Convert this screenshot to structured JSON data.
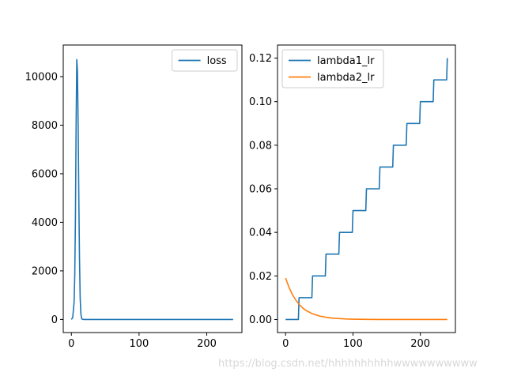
{
  "chart_data": [
    {
      "type": "line",
      "title": "",
      "xlabel": "",
      "ylabel": "",
      "xlim": [
        -12,
        252
      ],
      "ylim": [
        -540,
        11300
      ],
      "xticks": [
        0,
        100,
        200
      ],
      "xtick_labels": [
        "0",
        "100",
        "200"
      ],
      "yticks": [
        0,
        2000,
        4000,
        6000,
        8000,
        10000
      ],
      "ytick_labels": [
        "0",
        "2000",
        "4000",
        "6000",
        "8000",
        "10000"
      ],
      "legend_position": "top-right",
      "series": [
        {
          "name": "loss",
          "color": "#1f77b4",
          "x": [
            0,
            2,
            4,
            5,
            6,
            7,
            8,
            9,
            10,
            11,
            12,
            13,
            14,
            15,
            16,
            18,
            20,
            30,
            50,
            100,
            150,
            200,
            239
          ],
          "y": [
            0,
            80,
            700,
            1800,
            4200,
            8000,
            10700,
            10200,
            8000,
            5000,
            2500,
            900,
            250,
            60,
            10,
            0,
            0,
            0,
            0,
            0,
            0,
            0,
            0
          ]
        }
      ]
    },
    {
      "type": "line",
      "title": "",
      "xlabel": "",
      "ylabel": "",
      "xlim": [
        -12,
        252
      ],
      "ylim": [
        -0.006,
        0.126
      ],
      "xticks": [
        0,
        100,
        200
      ],
      "xtick_labels": [
        "0",
        "100",
        "200"
      ],
      "yticks": [
        0.0,
        0.02,
        0.04,
        0.06,
        0.08,
        0.1,
        0.12
      ],
      "ytick_labels": [
        "0.00",
        "0.02",
        "0.04",
        "0.06",
        "0.08",
        "0.10",
        "0.12"
      ],
      "legend_position": "top-left",
      "series": [
        {
          "name": "lambda1_lr",
          "color": "#1f77b4",
          "x": [
            0,
            19,
            20,
            39,
            40,
            59,
            60,
            79,
            80,
            99,
            100,
            119,
            120,
            139,
            140,
            159,
            160,
            179,
            180,
            199,
            200,
            219,
            220,
            239,
            240
          ],
          "y": [
            0.0,
            0.0,
            0.01,
            0.01,
            0.02,
            0.02,
            0.03,
            0.03,
            0.04,
            0.04,
            0.05,
            0.05,
            0.06,
            0.06,
            0.07,
            0.07,
            0.08,
            0.08,
            0.09,
            0.09,
            0.1,
            0.1,
            0.11,
            0.11,
            0.12
          ]
        },
        {
          "name": "lambda2_lr",
          "color": "#ff7f0e",
          "x": [
            0,
            5,
            10,
            15,
            20,
            25,
            30,
            40,
            50,
            60,
            70,
            80,
            90,
            100,
            120,
            140,
            160,
            180,
            200,
            220,
            240
          ],
          "y": [
            0.019,
            0.0148,
            0.0115,
            0.009,
            0.007,
            0.0054,
            0.0042,
            0.0026,
            0.0016,
            0.001,
            0.0006,
            0.0004,
            0.00024,
            0.00015,
            6e-05,
            2e-05,
            1e-05,
            0.0,
            0.0,
            0.0,
            0.0
          ]
        }
      ]
    }
  ],
  "watermark": "https://blog.csdn.net/hhhhhhhhhhwwwwwwwwww"
}
